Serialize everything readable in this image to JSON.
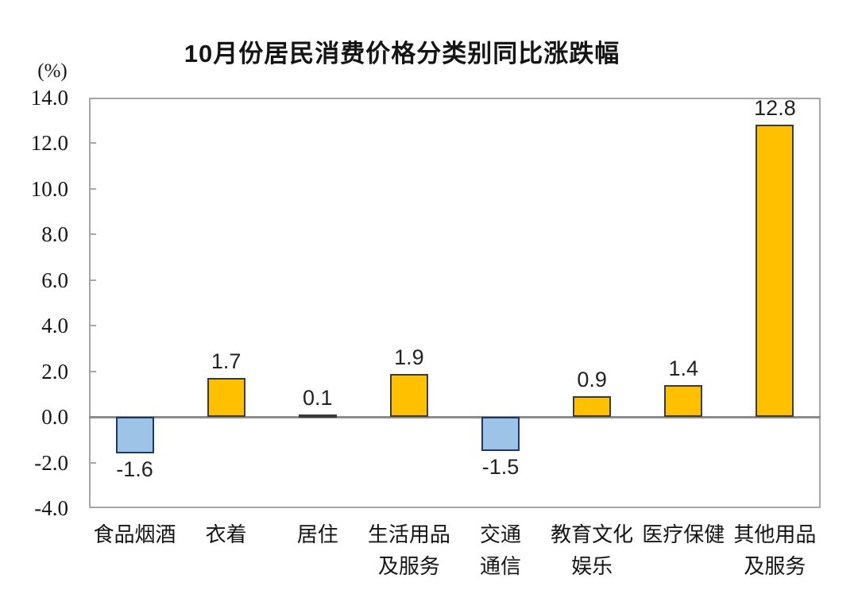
{
  "title": "10月份居民消费价格分类别同比涨跌幅",
  "unit_label": "(%)",
  "colors": {
    "positive_fill": "#FFC000",
    "positive_border": "#3A3A3A",
    "negative_fill": "#9DC3E6",
    "negative_border": "#1F3864",
    "axis": "#A6A6A6",
    "zero_line": "#8C8C8C",
    "text": "#151515"
  },
  "y_axis": {
    "tick_labels": [
      "14.0",
      "12.0",
      "10.0",
      "8.0",
      "6.0",
      "4.0",
      "2.0",
      "0.0",
      "-2.0",
      "-4.0"
    ],
    "tick_values": [
      14.0,
      12.0,
      10.0,
      8.0,
      6.0,
      4.0,
      2.0,
      0.0,
      -2.0,
      -4.0
    ],
    "max": 14.0,
    "min": -4.0,
    "step": 2.0
  },
  "chart_data": {
    "type": "bar",
    "title": "10月份居民消费价格分类别同比涨跌幅",
    "ylabel": "(%)",
    "ylim": [
      -4.0,
      14.0
    ],
    "grid": false,
    "legend": false,
    "categories": [
      "食品烟酒",
      "衣着",
      "居住",
      "生活用品及服务",
      "交通通信",
      "教育文化娱乐",
      "医疗保健",
      "其他用品及服务"
    ],
    "category_label_lines": [
      [
        "食品烟酒"
      ],
      [
        "衣着"
      ],
      [
        "居住"
      ],
      [
        "生活用品",
        "及服务"
      ],
      [
        "交通",
        "通信"
      ],
      [
        "教育文化",
        "娱乐"
      ],
      [
        "医疗保健"
      ],
      [
        "其他用品",
        "及服务"
      ]
    ],
    "values": [
      -1.6,
      1.7,
      0.1,
      1.9,
      -1.5,
      0.9,
      1.4,
      12.8
    ],
    "data_labels": [
      "-1.6",
      "1.7",
      "0.1",
      "1.9",
      "-1.5",
      "0.9",
      "1.4",
      "12.8"
    ]
  }
}
